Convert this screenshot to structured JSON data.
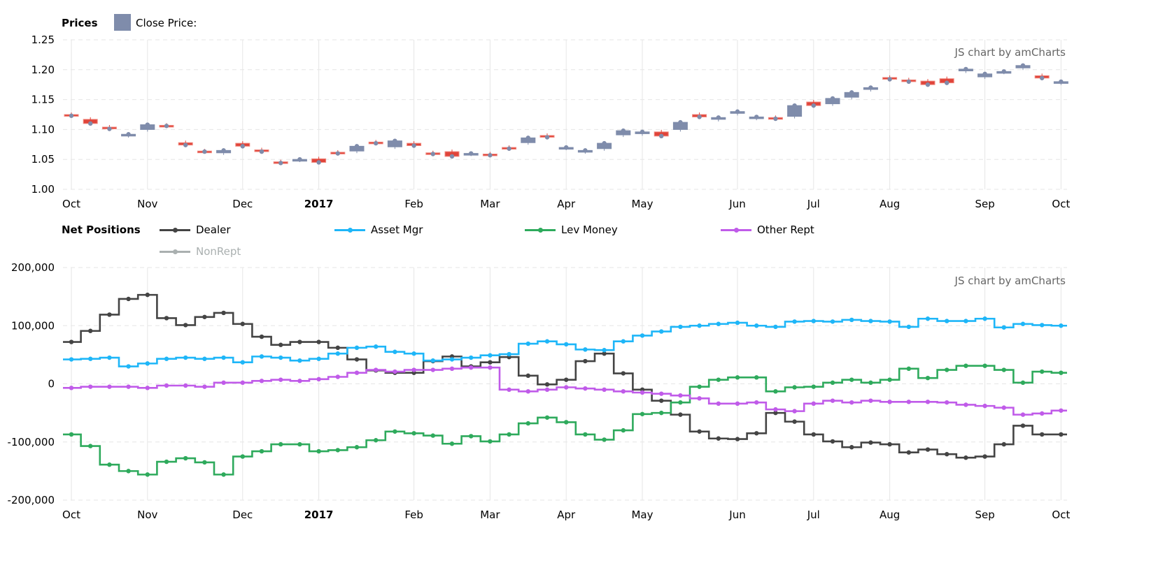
{
  "colors": {
    "up": "#7f8cab",
    "down": "#e0443a",
    "bullet": "#7f8cab",
    "grid": "#e6e6e6"
  },
  "chart_data": [
    {
      "type": "candlestick",
      "title": "Prices",
      "legend": [
        "Close Price:"
      ],
      "watermark": "JS chart by amCharts",
      "ylim": [
        1.0,
        1.25
      ],
      "yticks": [
        "1.25",
        "1.20",
        "1.15",
        "1.10",
        "1.05",
        "1.00"
      ],
      "ytick_values": [
        1.25,
        1.2,
        1.15,
        1.1,
        1.05,
        1.0
      ],
      "xticks": [
        {
          "label": "Oct",
          "index": 0
        },
        {
          "label": "Nov",
          "index": 4
        },
        {
          "label": "Dec",
          "index": 9
        },
        {
          "label": "2017",
          "index": 13,
          "bold": true
        },
        {
          "label": "Feb",
          "index": 18
        },
        {
          "label": "Mar",
          "index": 22
        },
        {
          "label": "Apr",
          "index": 26
        },
        {
          "label": "May",
          "index": 30
        },
        {
          "label": "Jun",
          "index": 35
        },
        {
          "label": "Jul",
          "index": 39
        },
        {
          "label": "Aug",
          "index": 43
        },
        {
          "label": "Sep",
          "index": 48
        },
        {
          "label": "Oct",
          "index": 52
        }
      ],
      "open": [
        1.125,
        1.117,
        1.104,
        1.09,
        1.1,
        1.107,
        1.078,
        1.064,
        1.061,
        1.077,
        1.066,
        1.046,
        1.049,
        1.051,
        1.062,
        1.064,
        1.079,
        1.071,
        1.077,
        1.061,
        1.063,
        1.059,
        1.059,
        1.07,
        1.078,
        1.09,
        1.069,
        1.063,
        1.068,
        1.091,
        1.093,
        1.096,
        1.1,
        1.125,
        1.117,
        1.127,
        1.119,
        1.12,
        1.122,
        1.146,
        1.143,
        1.154,
        1.167,
        1.187,
        1.183,
        1.181,
        1.185,
        1.198,
        1.188,
        1.196,
        1.203,
        1.19,
        1.178
      ],
      "close": [
        1.123,
        1.11,
        1.101,
        1.092,
        1.108,
        1.106,
        1.074,
        1.063,
        1.065,
        1.072,
        1.063,
        1.044,
        1.05,
        1.045,
        1.06,
        1.072,
        1.077,
        1.081,
        1.073,
        1.059,
        1.055,
        1.06,
        1.057,
        1.068,
        1.086,
        1.087,
        1.07,
        1.065,
        1.077,
        1.098,
        1.096,
        1.089,
        1.112,
        1.121,
        1.12,
        1.13,
        1.121,
        1.118,
        1.14,
        1.14,
        1.152,
        1.162,
        1.17,
        1.184,
        1.18,
        1.175,
        1.178,
        1.201,
        1.193,
        1.197,
        1.207,
        1.186,
        1.18
      ]
    },
    {
      "type": "line",
      "step": true,
      "title": "Net Positions",
      "watermark": "JS chart by amCharts",
      "ylim": [
        -200000,
        200000
      ],
      "yticks": [
        "200,000",
        "100,000",
        "0",
        "-100,000",
        "-200,000"
      ],
      "ytick_values": [
        200000,
        100000,
        0,
        -100000,
        -200000
      ],
      "xticks": [
        {
          "label": "Oct",
          "index": 0
        },
        {
          "label": "Nov",
          "index": 4
        },
        {
          "label": "Dec",
          "index": 9
        },
        {
          "label": "2017",
          "index": 13,
          "bold": true
        },
        {
          "label": "Feb",
          "index": 18
        },
        {
          "label": "Mar",
          "index": 22
        },
        {
          "label": "Apr",
          "index": 26
        },
        {
          "label": "May",
          "index": 30
        },
        {
          "label": "Jun",
          "index": 35
        },
        {
          "label": "Jul",
          "index": 39
        },
        {
          "label": "Aug",
          "index": 43
        },
        {
          "label": "Sep",
          "index": 48
        },
        {
          "label": "Oct",
          "index": 52
        }
      ],
      "series": [
        {
          "name": "Dealer",
          "color": "#444444",
          "hidden": false,
          "values": [
            72000,
            91000,
            119000,
            146000,
            153000,
            113000,
            101000,
            115000,
            122000,
            103000,
            81000,
            67000,
            72000,
            72000,
            62000,
            42000,
            23000,
            19000,
            19000,
            39000,
            47000,
            30000,
            37000,
            46000,
            14000,
            -1000,
            7000,
            39000,
            52000,
            18000,
            -10000,
            -29000,
            -53000,
            -82000,
            -94000,
            -95000,
            -85000,
            -50000,
            -65000,
            -87000,
            -99000,
            -109000,
            -101000,
            -104000,
            -118000,
            -113000,
            -121000,
            -127000,
            -125000,
            -104000,
            -72000,
            -87000,
            -87000
          ]
        },
        {
          "name": "Asset Mgr",
          "color": "#1eb6f8",
          "hidden": false,
          "values": [
            42000,
            43000,
            45000,
            30000,
            35000,
            43000,
            45000,
            43000,
            45000,
            37000,
            47000,
            45000,
            40000,
            43000,
            52000,
            62000,
            64000,
            55000,
            52000,
            40000,
            42000,
            45000,
            49000,
            51000,
            69000,
            73000,
            68000,
            59000,
            58000,
            73000,
            83000,
            90000,
            98000,
            100000,
            103000,
            105000,
            100000,
            98000,
            107000,
            108000,
            107000,
            110000,
            108000,
            107000,
            98000,
            112000,
            108000,
            108000,
            112000,
            97000,
            103000,
            101000,
            100000
          ]
        },
        {
          "name": "Lev Money",
          "color": "#2eaa5c",
          "hidden": false,
          "values": [
            -87000,
            -107000,
            -139000,
            -150000,
            -156000,
            -134000,
            -128000,
            -135000,
            -156000,
            -125000,
            -116000,
            -104000,
            -104000,
            -116000,
            -114000,
            -109000,
            -97000,
            -82000,
            -85000,
            -89000,
            -103000,
            -90000,
            -99000,
            -87000,
            -68000,
            -58000,
            -66000,
            -87000,
            -96000,
            -80000,
            -52000,
            -50000,
            -32000,
            -5000,
            7000,
            11000,
            11000,
            -13000,
            -6000,
            -5000,
            2000,
            7000,
            2000,
            7000,
            26000,
            10000,
            24000,
            31000,
            31000,
            24000,
            2000,
            21000,
            19000
          ]
        },
        {
          "name": "Other Rept",
          "color": "#c05be9",
          "hidden": false,
          "values": [
            -7000,
            -5000,
            -5000,
            -5000,
            -7000,
            -3000,
            -3000,
            -5000,
            2000,
            2000,
            5000,
            7000,
            5000,
            8000,
            12000,
            19000,
            24000,
            21000,
            24000,
            24000,
            26000,
            28000,
            28000,
            -10000,
            -13000,
            -10000,
            -6000,
            -8000,
            -10000,
            -13000,
            -15000,
            -17000,
            -20000,
            -25000,
            -34000,
            -34000,
            -32000,
            -44000,
            -47000,
            -34000,
            -29000,
            -32000,
            -29000,
            -31000,
            -31000,
            -31000,
            -32000,
            -36000,
            -38000,
            -41000,
            -53000,
            -51000,
            -46000
          ]
        },
        {
          "name": "NonRept",
          "color": "#aab0b0",
          "hidden": true,
          "values": []
        }
      ]
    }
  ]
}
